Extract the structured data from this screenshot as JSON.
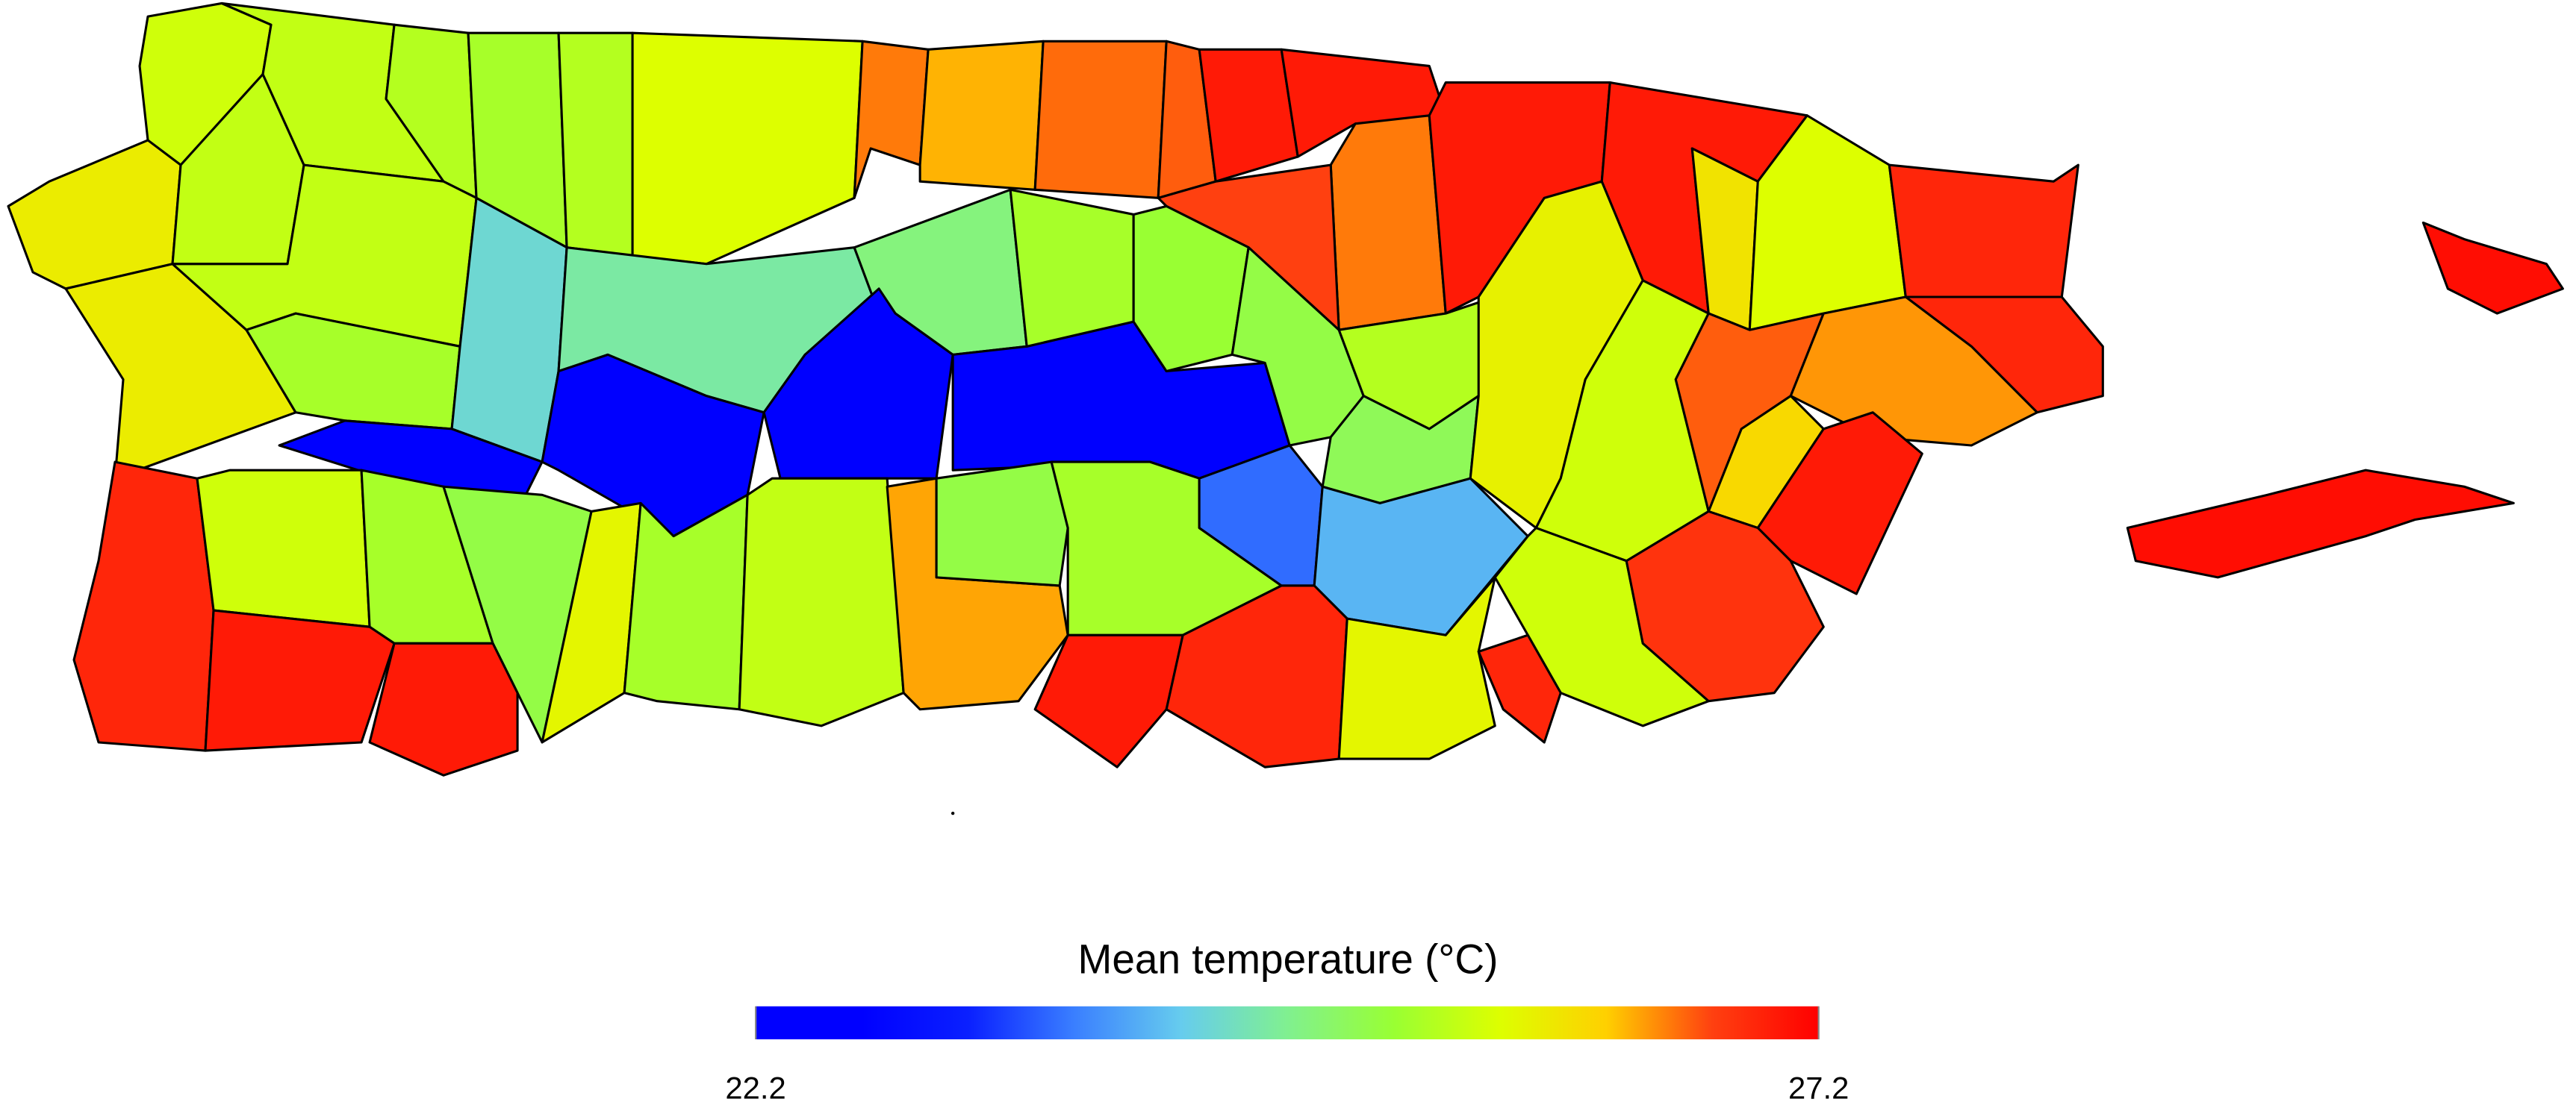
{
  "map": {
    "type": "choropleth",
    "regions": [
      25.6,
      25.9,
      25.5,
      25.5,
      25.4,
      25.3,
      25.4,
      25.7,
      26.5,
      26.3,
      26.55,
      26.6,
      27.0,
      27.0,
      26.5,
      26.7,
      27.0,
      27.0,
      26.0,
      25.7,
      26.9,
      26.9,
      25.9,
      25.5,
      25.3,
      24.35,
      24.6,
      24.8,
      22.2,
      22.2,
      22.2,
      22.2,
      25.3,
      25.2,
      25.1,
      25.4,
      25.0,
      25.85,
      25.6,
      26.6,
      26.4,
      26.1,
      27.0,
      26.9,
      25.6,
      25.3,
      25.1,
      27.0,
      27.0,
      25.8,
      25.3,
      25.5,
      26.35,
      25.1,
      25.3,
      23.6,
      24.05,
      27.0,
      26.9,
      25.8,
      25.6,
      26.9,
      26.8,
      27.1,
      27.1
    ],
    "legend": {
      "title": "Mean temperature (°C)",
      "range": [
        22.2,
        27.2
      ],
      "ticks": [
        22.2,
        27.2
      ],
      "colors": [
        "#0000ff",
        "#0000ff",
        "#0a20ff",
        "#3a7fff",
        "#66ccee",
        "#80f090",
        "#99ff33",
        "#ddff00",
        "#ffd000",
        "#ff4010",
        "#ff0000"
      ]
    }
  }
}
